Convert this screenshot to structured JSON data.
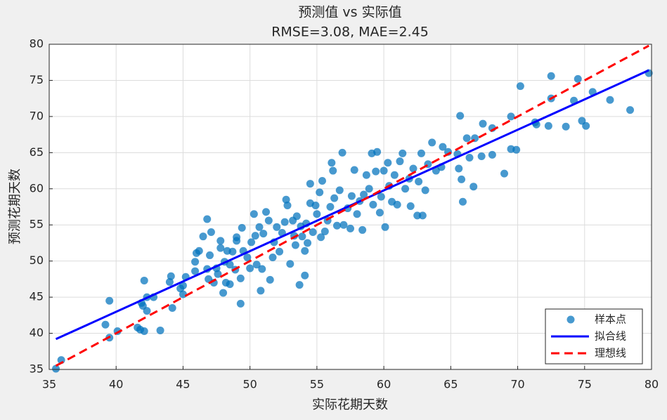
{
  "chart_data": {
    "type": "scatter",
    "title": "预测值 vs 实际值",
    "subtitle": "RMSE=3.08, MAE=2.45",
    "x_label": "实际花期天数",
    "y_label": "预测花期天数",
    "xlim": [
      35,
      80
    ],
    "xticks": [
      35,
      40,
      45,
      50,
      55,
      60,
      65,
      70,
      75,
      80
    ],
    "ylim": [
      35,
      80
    ],
    "yticks": [
      35,
      40,
      45,
      50,
      55,
      60,
      65,
      70,
      75,
      80
    ],
    "grid": true,
    "legend": "lower right",
    "series": [
      {
        "name": "样本点",
        "color": "#0072bd",
        "mode": "markers",
        "x": [
          35.5,
          35.9,
          39.2,
          39.5,
          39.5,
          40.1,
          41.6,
          41.8,
          41.9,
          42.1,
          42.1,
          42.3,
          42.3,
          42.0,
          42.8,
          43.3,
          44.0,
          44.1,
          44.2,
          44.8,
          45.0,
          45.0,
          45.2,
          45.9,
          45.9,
          46.2,
          46.0,
          46.5,
          46.8,
          46.8,
          46.9,
          47.0,
          47.1,
          47.3,
          47.5,
          47.6,
          47.8,
          47.8,
          48.0,
          48.1,
          48.2,
          48.3,
          48.5,
          48.5,
          48.7,
          48.9,
          49.0,
          49.0,
          49.3,
          49.3,
          49.4,
          49.5,
          49.8,
          50.0,
          50.1,
          50.3,
          50.4,
          50.5,
          50.7,
          50.8,
          50.9,
          51.0,
          51.2,
          51.4,
          51.5,
          51.7,
          51.8,
          52.0,
          52.2,
          52.4,
          52.6,
          52.7,
          52.8,
          53.0,
          53.2,
          53.3,
          53.4,
          53.5,
          53.7,
          53.8,
          53.9,
          54.1,
          54.1,
          54.2,
          54.3,
          54.5,
          54.5,
          54.7,
          54.9,
          55.0,
          55.2,
          55.3,
          55.4,
          55.6,
          55.8,
          56.0,
          56.1,
          56.2,
          56.3,
          56.5,
          56.7,
          56.9,
          57.0,
          57.3,
          57.5,
          57.6,
          57.8,
          58.0,
          58.2,
          58.4,
          58.5,
          58.7,
          58.9,
          59.1,
          59.2,
          59.4,
          59.5,
          59.7,
          59.8,
          60.0,
          60.1,
          60.3,
          60.4,
          60.6,
          60.8,
          61.0,
          61.2,
          61.4,
          61.6,
          61.9,
          62.0,
          62.2,
          62.5,
          62.6,
          62.8,
          62.9,
          63.1,
          63.3,
          63.6,
          63.9,
          64.3,
          64.4,
          64.8,
          65.5,
          65.6,
          65.7,
          65.8,
          65.9,
          66.2,
          66.4,
          66.7,
          66.8,
          67.3,
          67.4,
          68.1,
          68.1,
          69.0,
          69.5,
          69.5,
          69.9,
          70.2,
          71.3,
          71.4,
          72.3,
          72.5,
          72.5,
          73.6,
          74.2,
          74.5,
          74.8,
          75.1,
          75.6,
          76.9,
          78.4,
          79.8
        ],
        "values": [
          35.1,
          36.3,
          41.2,
          44.5,
          39.4,
          40.3,
          40.8,
          40.5,
          44.2,
          40.3,
          47.3,
          45.0,
          43.1,
          43.8,
          45.0,
          40.4,
          47.1,
          47.9,
          43.5,
          46.2,
          45.4,
          46.6,
          47.8,
          49.9,
          48.6,
          51.4,
          51.1,
          53.4,
          55.8,
          48.9,
          47.5,
          50.8,
          54.0,
          47.0,
          49.0,
          48.2,
          52.8,
          51.8,
          45.6,
          49.9,
          47.0,
          51.4,
          46.8,
          49.5,
          51.3,
          48.8,
          52.8,
          53.3,
          47.6,
          44.1,
          54.6,
          51.4,
          50.5,
          49.0,
          52.6,
          56.5,
          53.5,
          49.5,
          54.7,
          45.9,
          48.9,
          53.8,
          56.8,
          55.6,
          47.4,
          50.5,
          52.6,
          54.7,
          51.3,
          53.9,
          55.4,
          58.5,
          57.7,
          49.6,
          55.6,
          53.5,
          52.2,
          56.2,
          46.7,
          54.8,
          53.4,
          51.4,
          48.0,
          55.2,
          52.5,
          60.7,
          58.0,
          54.0,
          57.7,
          56.5,
          59.5,
          53.3,
          61.1,
          54.1,
          55.6,
          57.5,
          63.6,
          62.5,
          58.7,
          54.9,
          59.8,
          65.0,
          55.0,
          57.3,
          54.5,
          59.0,
          62.6,
          56.5,
          58.3,
          54.3,
          59.2,
          61.9,
          60.0,
          64.9,
          57.8,
          62.4,
          65.1,
          56.7,
          58.9,
          62.5,
          54.7,
          63.6,
          60.4,
          58.2,
          61.9,
          57.8,
          63.8,
          64.9,
          60.0,
          61.4,
          57.6,
          62.8,
          56.3,
          61.0,
          64.9,
          56.3,
          59.8,
          63.4,
          66.4,
          62.5,
          63.0,
          65.8,
          65.1,
          64.8,
          62.8,
          70.1,
          61.3,
          58.2,
          67.0,
          64.3,
          60.3,
          67.0,
          64.5,
          69.0,
          68.4,
          64.7,
          62.1,
          70.0,
          65.5,
          65.4,
          74.2,
          69.2,
          68.9,
          68.7,
          72.5,
          75.6,
          68.6,
          72.2,
          75.2,
          69.4,
          68.7,
          73.4,
          72.3,
          70.9,
          76.0
        ]
      },
      {
        "name": "拟合线",
        "color": "#0000ff",
        "mode": "line",
        "x": [
          35.5,
          79.8
        ],
        "values": [
          39.2,
          76.4
        ]
      },
      {
        "name": "理想线",
        "color": "#ff0000",
        "mode": "dashed",
        "x": [
          35.5,
          79.8
        ],
        "values": [
          35.5,
          79.8
        ]
      }
    ]
  }
}
